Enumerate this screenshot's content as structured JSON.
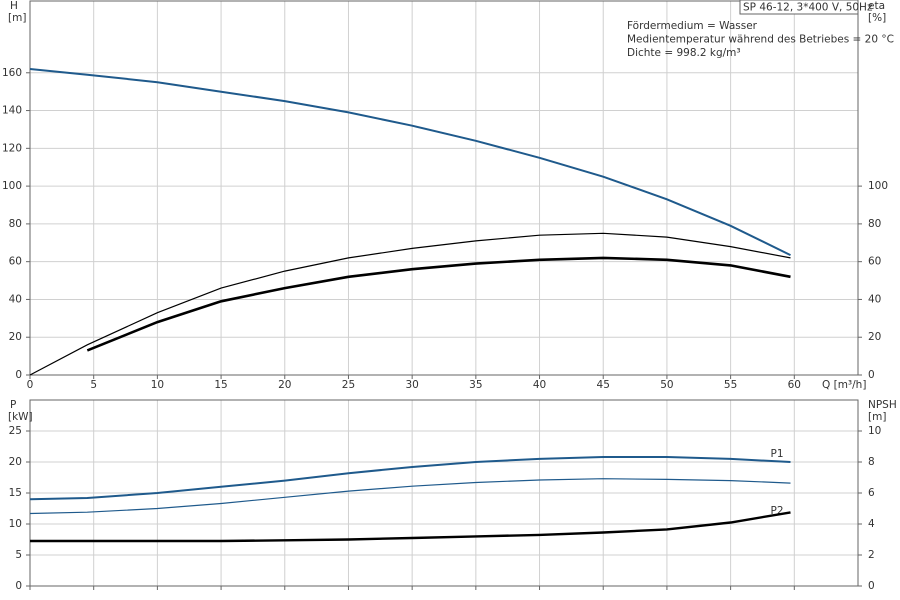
{
  "chart_data": [
    {
      "type": "line",
      "title": "SP 46-12, 3*400 V, 50Hz",
      "annotations": [
        "Fördermedium = Wasser",
        "Medientemperatur während des Betriebes = 20 °C",
        "Dichte = 998.2 kg/m³"
      ],
      "ylabel": "H",
      "yunit": "[m]",
      "y2label": "eta",
      "y2unit": "[%]",
      "xlabel": "Q [m³/h]",
      "x": [
        0,
        4.5,
        10,
        15,
        20,
        25,
        30,
        35,
        40,
        45,
        50,
        55,
        59.7
      ],
      "xlim": [
        0,
        65
      ],
      "xticks": [
        0,
        5,
        10,
        15,
        20,
        25,
        30,
        35,
        40,
        45,
        50,
        55,
        60
      ],
      "ylim": [
        0,
        198
      ],
      "yticks": [
        0,
        20,
        40,
        60,
        80,
        100,
        120,
        140,
        160
      ],
      "y2lim": [
        0,
        198
      ],
      "y2ticks": [
        0,
        20,
        40,
        60,
        80,
        100
      ],
      "grid": true,
      "series": [
        {
          "color": "#1f5a8c",
          "width": 2,
          "values": [
            162,
            159,
            155,
            150,
            145,
            139,
            132,
            124,
            115,
            105,
            93,
            79,
            63.5
          ]
        },
        {
          "color": "#000000",
          "width": 1.2,
          "axis": "y2",
          "values": [
            0,
            16,
            33,
            46,
            55,
            62,
            67,
            71,
            74,
            75,
            73,
            68,
            62
          ]
        },
        {
          "color": "#000000",
          "width": 2.6,
          "axis": "y2",
          "values": [
            null,
            13,
            28,
            39,
            46,
            52,
            56,
            59,
            61,
            62,
            61,
            58,
            52
          ]
        }
      ]
    },
    {
      "type": "line",
      "ylabel": "P",
      "yunit": "[kW]",
      "y2label": "NPSH",
      "y2unit": "[m]",
      "x": [
        0,
        4.5,
        10,
        15,
        20,
        25,
        30,
        35,
        40,
        45,
        50,
        55,
        59.7
      ],
      "xlim": [
        0,
        65
      ],
      "ylim": [
        0,
        30
      ],
      "yticks": [
        0,
        5,
        10,
        15,
        20,
        25
      ],
      "y2lim": [
        0,
        12
      ],
      "y2ticks": [
        0,
        2,
        4,
        6,
        8,
        10
      ],
      "grid": true,
      "series": [
        {
          "name": "P1",
          "color": "#1f5a8c",
          "width": 2,
          "values": [
            14,
            14.2,
            15,
            16,
            17,
            18.2,
            19.2,
            20,
            20.5,
            20.8,
            20.8,
            20.5,
            20
          ]
        },
        {
          "name": "P2",
          "color": "#1f5a8c",
          "width": 1.2,
          "values": [
            11.7,
            11.9,
            12.5,
            13.3,
            14.3,
            15.3,
            16.1,
            16.7,
            17.1,
            17.3,
            17.2,
            17,
            16.6
          ]
        },
        {
          "color": "#000000",
          "width": 2.4,
          "axis": "y2",
          "values": [
            2.9,
            2.9,
            2.9,
            2.9,
            2.95,
            3,
            3.1,
            3.2,
            3.3,
            3.45,
            3.65,
            4.1,
            4.75
          ]
        }
      ]
    }
  ]
}
